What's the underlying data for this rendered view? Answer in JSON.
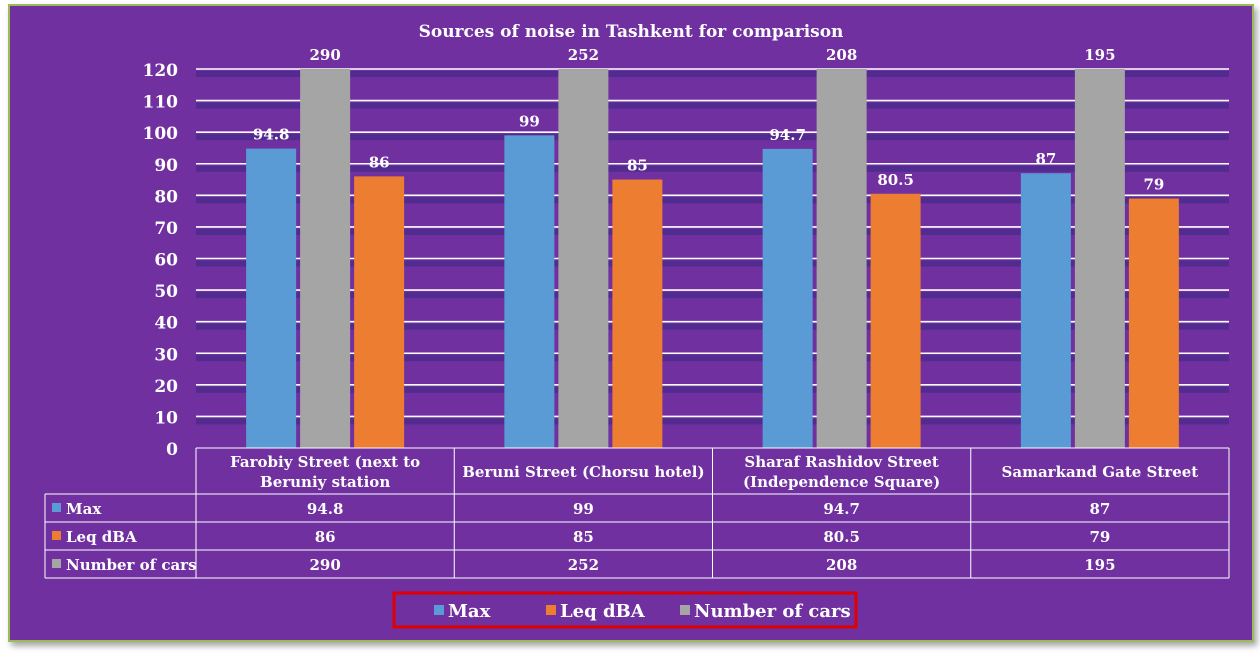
{
  "chart_data": {
    "type": "bar",
    "title": "Sources of noise in Tashkent for comparison",
    "categories": [
      [
        "Farobiy Street (next to",
        "Beruniy station"
      ],
      [
        "Beruni Street (Chorsu hotel)"
      ],
      [
        "Sharaf Rashidov Street",
        "(Independence Square)"
      ],
      [
        "Samarkand Gate Street"
      ]
    ],
    "series": [
      {
        "name": "Max",
        "color": "#5b9bd5",
        "values": [
          94.8,
          99,
          94.7,
          87
        ],
        "labels": [
          "94.8",
          "99",
          "94.7",
          "87"
        ]
      },
      {
        "name": "Number of cars",
        "color": "#a5a5a5",
        "values": [
          290,
          252,
          208,
          195
        ],
        "labels": [
          "290",
          "252",
          "208",
          "195"
        ]
      },
      {
        "name": "Leq dBA",
        "color": "#ed7d31",
        "values": [
          86,
          85,
          80.5,
          79
        ],
        "labels": [
          "86",
          "85",
          "80.5",
          "79"
        ]
      }
    ],
    "ylim": [
      0,
      120
    ],
    "yticks": [
      "0",
      "10",
      "20",
      "30",
      "40",
      "50",
      "60",
      "70",
      "80",
      "90",
      "100",
      "110",
      "120"
    ],
    "grid": true,
    "table_rows": [
      "Max",
      "Leq dBA",
      "Number of cars"
    ],
    "legend": {
      "position": "bottom",
      "order": [
        "Max",
        "Leq dBA",
        "Number of cars"
      ],
      "border_color": "#e00000"
    }
  }
}
